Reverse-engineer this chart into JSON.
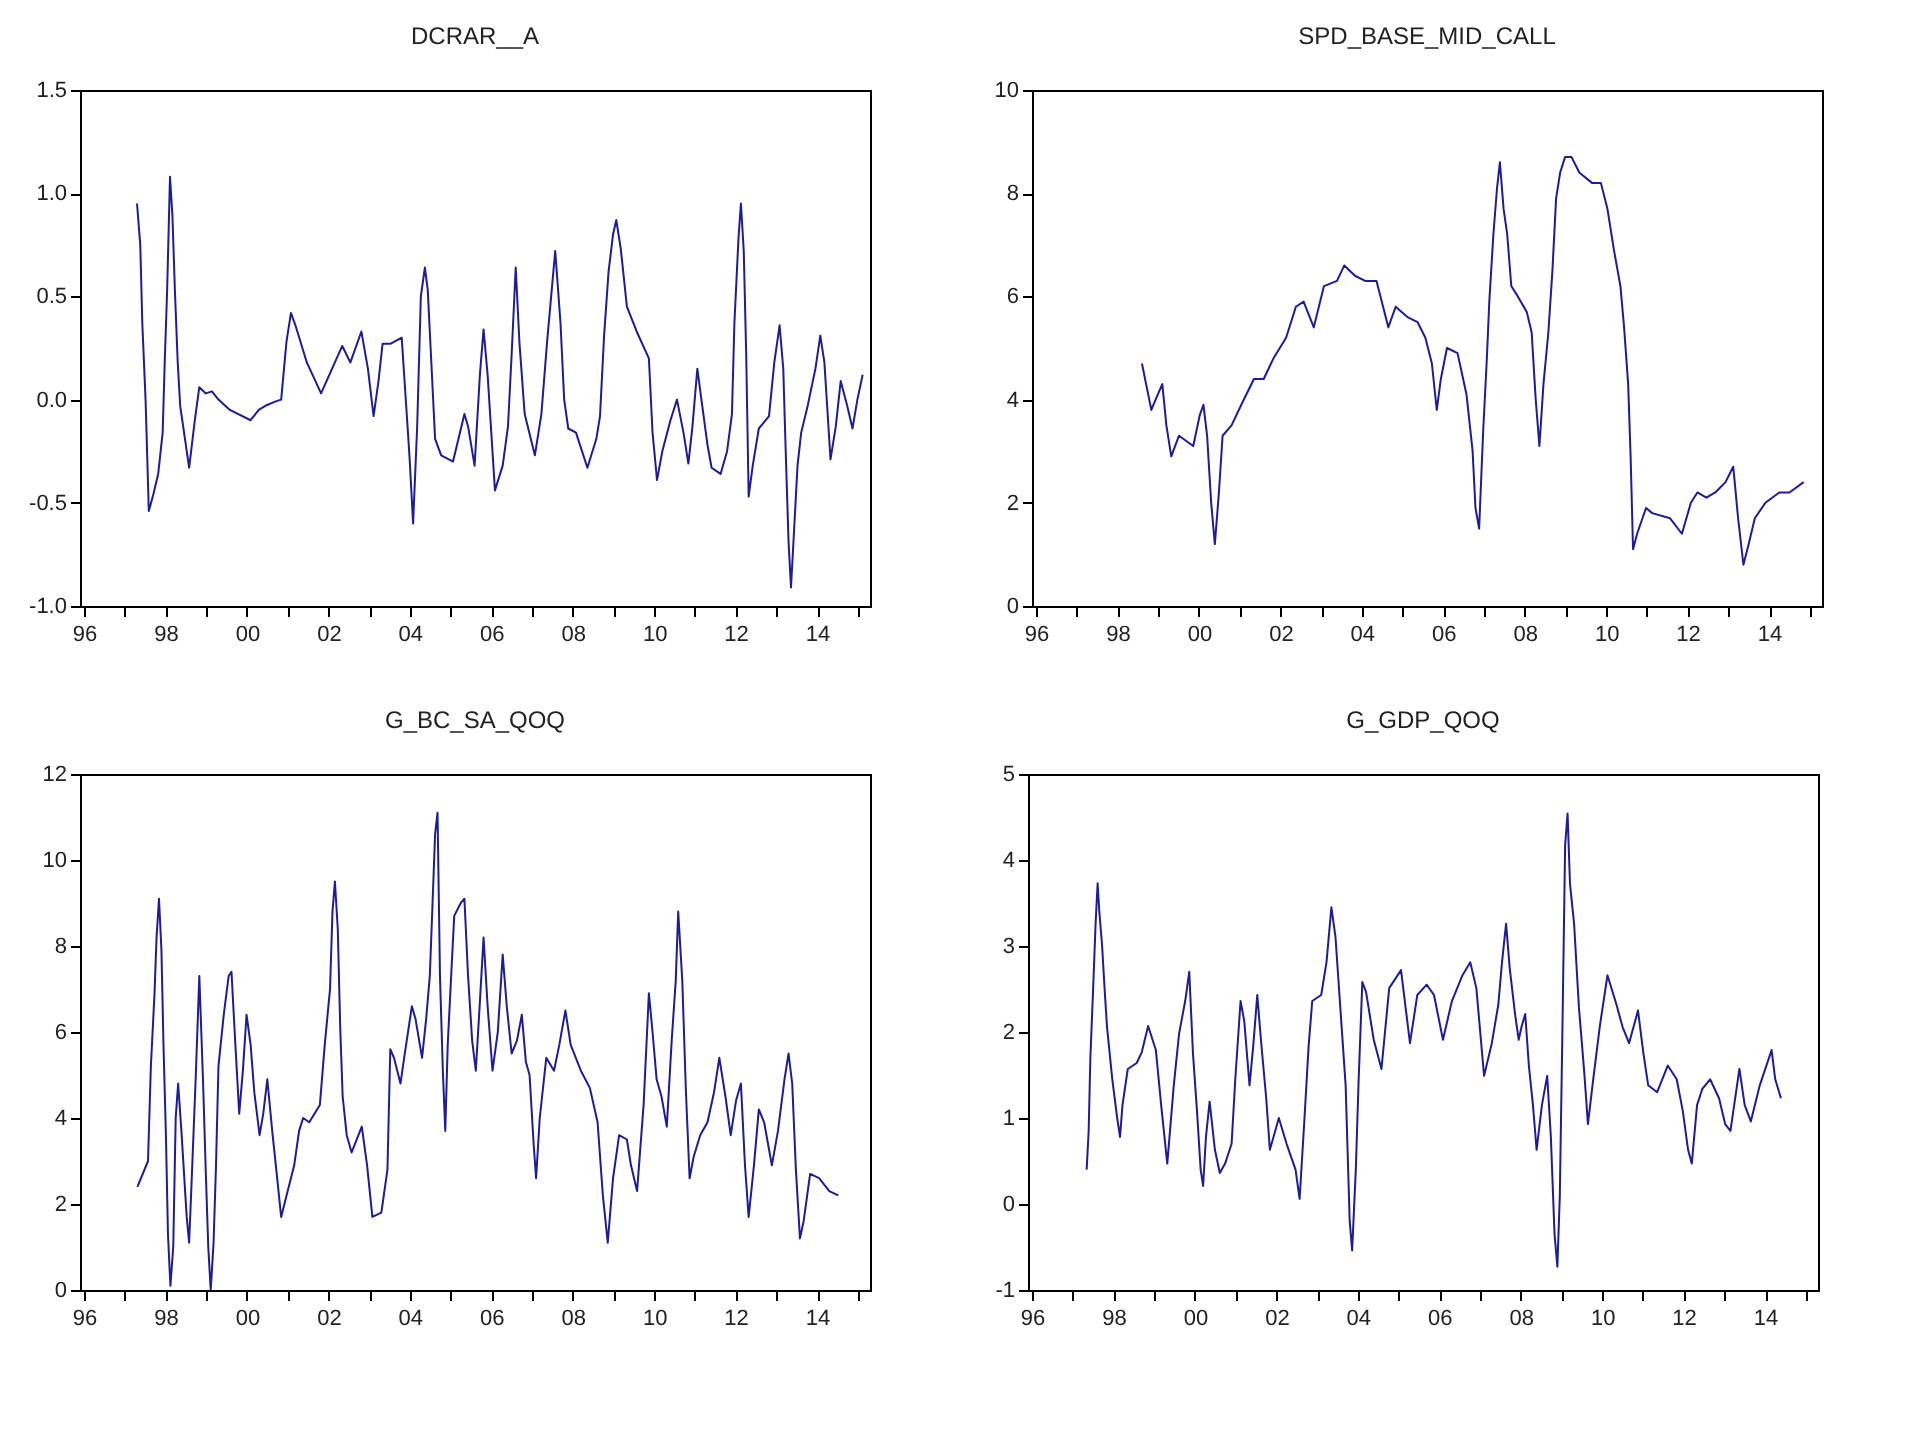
{
  "chart_data": [
    {
      "type": "line",
      "title": "DCRAR__A",
      "xlim": [
        1995.9,
        2015.3
      ],
      "ylim": [
        -1,
        1.5
      ],
      "xticks": [
        {
          "value": 1996,
          "label": "96"
        },
        {
          "value": 1997,
          "label": null
        },
        {
          "value": 1998,
          "label": "98"
        },
        {
          "value": 1999,
          "label": null
        },
        {
          "value": 2000,
          "label": "00"
        },
        {
          "value": 2001,
          "label": null
        },
        {
          "value": 2002,
          "label": "02"
        },
        {
          "value": 2003,
          "label": null
        },
        {
          "value": 2004,
          "label": "04"
        },
        {
          "value": 2005,
          "label": null
        },
        {
          "value": 2006,
          "label": "06"
        },
        {
          "value": 2007,
          "label": null
        },
        {
          "value": 2008,
          "label": "08"
        },
        {
          "value": 2009,
          "label": null
        },
        {
          "value": 2010,
          "label": "10"
        },
        {
          "value": 2011,
          "label": null
        },
        {
          "value": 2012,
          "label": "12"
        },
        {
          "value": 2013,
          "label": null
        },
        {
          "value": 2014,
          "label": "14"
        },
        {
          "value": 2015,
          "label": null
        }
      ],
      "yticks": [
        {
          "value": -1,
          "label": "-1.0"
        },
        -0.5,
        {
          "value": 0,
          "label": "0.0"
        },
        0.5,
        {
          "value": 1,
          "label": "1.0"
        },
        1.5
      ],
      "series": [
        {
          "color": "#1c1c9c",
          "x": [
            1997.3,
            1997.38,
            1997.43,
            1997.51,
            1997.59,
            1997.7,
            1997.82,
            1997.93,
            1997.98,
            1998.04,
            1998.11,
            1998.17,
            1998.23,
            1998.3,
            1998.36,
            1998.58,
            1998.72,
            1998.83,
            1998.99,
            1999.14,
            1999.3,
            1999.58,
            2000.09,
            2000.29,
            2000.45,
            2000.69,
            2000.84,
            2000.97,
            2001.08,
            2001.19,
            2001.47,
            2001.82,
            2002.34,
            2002.54,
            2002.81,
            2002.97,
            2003.11,
            2003.23,
            2003.33,
            2003.52,
            2003.8,
            2003.91,
            2003.99,
            2004.08,
            2004.18,
            2004.27,
            2004.37,
            2004.44,
            2004.51,
            2004.62,
            2004.77,
            2005.06,
            2005.34,
            2005.43,
            2005.59,
            2005.72,
            2005.81,
            2005.91,
            2006.0,
            2006.09,
            2006.28,
            2006.41,
            2006.5,
            2006.6,
            2006.69,
            2006.82,
            2007.07,
            2007.23,
            2007.37,
            2007.57,
            2007.7,
            2007.79,
            2007.89,
            2008.08,
            2008.36,
            2008.58,
            2008.67,
            2008.77,
            2008.88,
            2008.99,
            2009.07,
            2009.18,
            2009.33,
            2009.57,
            2009.87,
            2009.96,
            2010.07,
            2010.2,
            2010.4,
            2010.56,
            2010.72,
            2010.84,
            2010.94,
            2011.06,
            2011.16,
            2011.31,
            2011.41,
            2011.63,
            2011.79,
            2011.91,
            2011.97,
            2012.07,
            2012.13,
            2012.2,
            2012.26,
            2012.32,
            2012.42,
            2012.57,
            2012.82,
            2012.95,
            2013.08,
            2013.17,
            2013.23,
            2013.3,
            2013.36,
            2013.42,
            2013.52,
            2013.61,
            2013.77,
            2013.96,
            2014.08,
            2014.18,
            2014.27,
            2014.33,
            2014.46,
            2014.58,
            2014.74,
            2014.87,
            2014.99,
            2015.12
          ],
          "values": [
            0.95,
            0.75,
            0.37,
            0.0,
            -0.54,
            -0.46,
            -0.36,
            -0.16,
            0.18,
            0.53,
            1.08,
            0.89,
            0.53,
            0.18,
            -0.03,
            -0.33,
            -0.1,
            0.06,
            0.03,
            0.04,
            0.0,
            -0.05,
            -0.1,
            -0.05,
            -0.03,
            -0.01,
            0.0,
            0.28,
            0.42,
            0.36,
            0.18,
            0.03,
            0.26,
            0.18,
            0.33,
            0.15,
            -0.08,
            0.09,
            0.27,
            0.27,
            0.3,
            -0.03,
            -0.27,
            -0.6,
            -0.13,
            0.5,
            0.64,
            0.53,
            0.25,
            -0.19,
            -0.27,
            -0.3,
            -0.07,
            -0.13,
            -0.32,
            0.12,
            0.34,
            0.12,
            -0.16,
            -0.44,
            -0.32,
            -0.13,
            0.22,
            0.64,
            0.28,
            -0.07,
            -0.27,
            -0.07,
            0.28,
            0.72,
            0.37,
            0.0,
            -0.14,
            -0.16,
            -0.33,
            -0.19,
            -0.08,
            0.31,
            0.62,
            0.8,
            0.87,
            0.73,
            0.45,
            0.33,
            0.2,
            -0.16,
            -0.39,
            -0.25,
            -0.1,
            0.0,
            -0.16,
            -0.31,
            -0.13,
            0.15,
            0.0,
            -0.22,
            -0.33,
            -0.36,
            -0.25,
            -0.07,
            0.37,
            0.78,
            0.95,
            0.72,
            0.22,
            -0.47,
            -0.32,
            -0.14,
            -0.08,
            0.18,
            0.36,
            0.15,
            -0.25,
            -0.69,
            -0.91,
            -0.69,
            -0.32,
            -0.16,
            -0.03,
            0.15,
            0.31,
            0.18,
            -0.1,
            -0.29,
            -0.13,
            0.09,
            -0.03,
            -0.14,
            0.0,
            0.12
          ]
        }
      ]
    },
    {
      "type": "line",
      "title": "SPD_BASE_MID_CALL",
      "xlim": [
        1995.9,
        2015.3
      ],
      "ylim": [
        0,
        10
      ],
      "xticks": [
        {
          "value": 1996,
          "label": "96"
        },
        {
          "value": 1997,
          "label": null
        },
        {
          "value": 1998,
          "label": "98"
        },
        {
          "value": 1999,
          "label": null
        },
        {
          "value": 2000,
          "label": "00"
        },
        {
          "value": 2001,
          "label": null
        },
        {
          "value": 2002,
          "label": "02"
        },
        {
          "value": 2003,
          "label": null
        },
        {
          "value": 2004,
          "label": "04"
        },
        {
          "value": 2005,
          "label": null
        },
        {
          "value": 2006,
          "label": "06"
        },
        {
          "value": 2007,
          "label": null
        },
        {
          "value": 2008,
          "label": "08"
        },
        {
          "value": 2009,
          "label": null
        },
        {
          "value": 2010,
          "label": "10"
        },
        {
          "value": 2011,
          "label": null
        },
        {
          "value": 2012,
          "label": "12"
        },
        {
          "value": 2013,
          "label": null
        },
        {
          "value": 2014,
          "label": "14"
        },
        {
          "value": 2015,
          "label": null
        }
      ],
      "yticks": [
        0,
        2,
        4,
        6,
        8,
        10
      ],
      "series": [
        {
          "color": "#1c1c9c",
          "x": [
            1998.6,
            1998.83,
            1998.99,
            1999.1,
            1999.2,
            1999.32,
            1999.51,
            1999.86,
            2000.02,
            2000.11,
            2000.2,
            2000.3,
            2000.39,
            2000.49,
            2000.58,
            2000.8,
            2001.04,
            2001.35,
            2001.59,
            2001.83,
            2002.14,
            2002.38,
            2002.57,
            2002.82,
            2003.07,
            2003.39,
            2003.57,
            2003.83,
            2004.08,
            2004.36,
            2004.65,
            2004.83,
            2005.12,
            2005.37,
            2005.56,
            2005.72,
            2005.84,
            2005.94,
            2006.09,
            2006.35,
            2006.57,
            2006.72,
            2006.79,
            2006.88,
            2006.98,
            2007.07,
            2007.13,
            2007.23,
            2007.32,
            2007.39,
            2007.48,
            2007.57,
            2007.67,
            2007.83,
            2008.05,
            2008.17,
            2008.27,
            2008.36,
            2008.46,
            2008.58,
            2008.68,
            2008.77,
            2008.87,
            2008.99,
            2009.15,
            2009.34,
            2009.65,
            2009.87,
            2010.03,
            2010.19,
            2010.35,
            2010.44,
            2010.54,
            2010.6,
            2010.66,
            2010.76,
            2010.98,
            2011.13,
            2011.57,
            2011.86,
            2012.08,
            2012.24,
            2012.46,
            2012.68,
            2012.93,
            2013.12,
            2013.24,
            2013.37,
            2013.5,
            2013.65,
            2013.91,
            2014.25,
            2014.5,
            2014.85
          ],
          "values": [
            4.7,
            3.8,
            4.1,
            4.3,
            3.5,
            2.9,
            3.3,
            3.1,
            3.7,
            3.9,
            3.3,
            2.0,
            1.2,
            2.2,
            3.3,
            3.5,
            3.9,
            4.4,
            4.4,
            4.8,
            5.2,
            5.8,
            5.9,
            5.4,
            6.2,
            6.3,
            6.6,
            6.4,
            6.3,
            6.3,
            5.4,
            5.8,
            5.6,
            5.5,
            5.2,
            4.7,
            3.8,
            4.4,
            5.0,
            4.9,
            4.1,
            3.0,
            1.9,
            1.5,
            3.4,
            4.8,
            5.9,
            7.2,
            8.1,
            8.6,
            7.7,
            7.2,
            6.2,
            6.0,
            5.7,
            5.3,
            4.0,
            3.1,
            4.3,
            5.3,
            6.5,
            7.9,
            8.4,
            8.7,
            8.7,
            8.4,
            8.2,
            8.2,
            7.7,
            6.9,
            6.2,
            5.4,
            4.3,
            2.9,
            1.1,
            1.4,
            1.9,
            1.8,
            1.7,
            1.4,
            2.0,
            2.2,
            2.1,
            2.2,
            2.4,
            2.7,
            1.7,
            0.8,
            1.2,
            1.7,
            2.0,
            2.2,
            2.2,
            2.4
          ]
        }
      ]
    },
    {
      "type": "line",
      "title": "G_BC_SA_QOQ",
      "xlim": [
        1995.9,
        2015.3
      ],
      "ylim": [
        0,
        12
      ],
      "xticks": [
        {
          "value": 1996,
          "label": "96"
        },
        {
          "value": 1997,
          "label": null
        },
        {
          "value": 1998,
          "label": "98"
        },
        {
          "value": 1999,
          "label": null
        },
        {
          "value": 2000,
          "label": "00"
        },
        {
          "value": 2001,
          "label": null
        },
        {
          "value": 2002,
          "label": "02"
        },
        {
          "value": 2003,
          "label": null
        },
        {
          "value": 2004,
          "label": "04"
        },
        {
          "value": 2005,
          "label": null
        },
        {
          "value": 2006,
          "label": "06"
        },
        {
          "value": 2007,
          "label": null
        },
        {
          "value": 2008,
          "label": "08"
        },
        {
          "value": 2009,
          "label": null
        },
        {
          "value": 2010,
          "label": "10"
        },
        {
          "value": 2011,
          "label": null
        },
        {
          "value": 2012,
          "label": "12"
        },
        {
          "value": 2013,
          "label": null
        },
        {
          "value": 2014,
          "label": "14"
        },
        {
          "value": 2015,
          "label": null
        }
      ],
      "yticks": [
        0,
        2,
        4,
        6,
        8,
        10,
        12
      ],
      "series": [
        {
          "color": "#1c1c9c",
          "x": [
            1997.31,
            1997.57,
            1997.64,
            1997.73,
            1997.78,
            1997.84,
            1997.9,
            1997.95,
            1998.01,
            1998.06,
            1998.12,
            1998.19,
            1998.25,
            1998.31,
            1998.39,
            1998.52,
            1998.58,
            1998.64,
            1998.74,
            1998.83,
            1998.92,
            1998.99,
            1999.05,
            1999.11,
            1999.18,
            1999.24,
            1999.3,
            1999.43,
            1999.55,
            1999.62,
            1999.71,
            1999.81,
            1999.9,
            1999.99,
            2000.09,
            2000.18,
            2000.31,
            2000.4,
            2000.5,
            2000.62,
            2000.72,
            2000.84,
            2001.0,
            2001.16,
            2001.28,
            2001.38,
            2001.53,
            2001.79,
            2001.91,
            2002.04,
            2002.1,
            2002.16,
            2002.23,
            2002.29,
            2002.35,
            2002.45,
            2002.57,
            2002.82,
            2002.95,
            2003.08,
            2003.3,
            2003.45,
            2003.52,
            2003.61,
            2003.77,
            2003.86,
            2004.05,
            2004.14,
            2004.3,
            2004.4,
            2004.49,
            2004.55,
            2004.62,
            2004.68,
            2004.74,
            2004.81,
            2004.87,
            2004.93,
            2005.03,
            2005.09,
            2005.25,
            2005.34,
            2005.43,
            2005.53,
            2005.62,
            2005.72,
            2005.81,
            2005.91,
            2006.03,
            2006.16,
            2006.28,
            2006.38,
            2006.5,
            2006.63,
            2006.75,
            2006.85,
            2006.94,
            2007.04,
            2007.1,
            2007.19,
            2007.35,
            2007.54,
            2007.67,
            2007.82,
            2007.95,
            2008.2,
            2008.42,
            2008.61,
            2008.74,
            2008.86,
            2008.99,
            2009.14,
            2009.33,
            2009.43,
            2009.58,
            2009.74,
            2009.87,
            2009.96,
            2010.06,
            2010.18,
            2010.31,
            2010.43,
            2010.53,
            2010.59,
            2010.69,
            2010.78,
            2010.87,
            2010.97,
            2011.13,
            2011.31,
            2011.47,
            2011.6,
            2011.75,
            2011.88,
            2012.01,
            2012.13,
            2012.23,
            2012.32,
            2012.45,
            2012.57,
            2012.7,
            2012.89,
            2013.04,
            2013.2,
            2013.3,
            2013.39,
            2013.48,
            2013.58,
            2013.67,
            2013.83,
            2014.05,
            2014.3,
            2014.52
          ],
          "values": [
            2.4,
            3.0,
            5.2,
            6.9,
            8.2,
            9.1,
            7.9,
            5.7,
            3.6,
            1.3,
            0.1,
            1.0,
            4.0,
            4.8,
            3.7,
            1.7,
            1.1,
            2.5,
            4.9,
            7.3,
            4.9,
            2.7,
            1.0,
            0.0,
            1.1,
            2.9,
            5.2,
            6.4,
            7.3,
            7.4,
            5.8,
            4.1,
            5.1,
            6.4,
            5.7,
            4.6,
            3.6,
            4.1,
            4.9,
            3.7,
            2.8,
            1.7,
            2.3,
            2.9,
            3.7,
            4.0,
            3.9,
            4.3,
            5.7,
            7.0,
            8.8,
            9.5,
            8.4,
            6.1,
            4.5,
            3.6,
            3.2,
            3.8,
            2.9,
            1.7,
            1.8,
            2.8,
            5.6,
            5.4,
            4.8,
            5.4,
            6.6,
            6.3,
            5.4,
            6.3,
            7.3,
            8.8,
            10.6,
            11.1,
            7.3,
            5.1,
            3.7,
            5.7,
            7.6,
            8.7,
            9.0,
            9.1,
            7.3,
            5.8,
            5.1,
            6.7,
            8.2,
            6.6,
            5.1,
            6.0,
            7.8,
            6.6,
            5.5,
            5.8,
            6.4,
            5.3,
            5.0,
            3.4,
            2.6,
            4.0,
            5.4,
            5.1,
            5.7,
            6.5,
            5.7,
            5.1,
            4.7,
            3.9,
            2.2,
            1.1,
            2.6,
            3.6,
            3.5,
            2.9,
            2.3,
            4.3,
            6.9,
            6.0,
            4.9,
            4.5,
            3.8,
            5.8,
            7.2,
            8.8,
            7.2,
            4.6,
            2.6,
            3.1,
            3.6,
            3.9,
            4.6,
            5.4,
            4.5,
            3.6,
            4.4,
            4.8,
            2.9,
            1.7,
            2.9,
            4.2,
            3.9,
            2.9,
            3.7,
            4.9,
            5.5,
            4.8,
            2.8,
            1.2,
            1.6,
            2.7,
            2.6,
            2.3,
            2.2
          ]
        }
      ]
    },
    {
      "type": "line",
      "title": "G_GDP_QOQ",
      "xlim": [
        1995.9,
        2015.3
      ],
      "ylim": [
        -1,
        5
      ],
      "xticks": [
        {
          "value": 1996,
          "label": "96"
        },
        {
          "value": 1997,
          "label": null
        },
        {
          "value": 1998,
          "label": "98"
        },
        {
          "value": 1999,
          "label": null
        },
        {
          "value": 2000,
          "label": "00"
        },
        {
          "value": 2001,
          "label": null
        },
        {
          "value": 2002,
          "label": "02"
        },
        {
          "value": 2003,
          "label": null
        },
        {
          "value": 2004,
          "label": "04"
        },
        {
          "value": 2005,
          "label": null
        },
        {
          "value": 2006,
          "label": "06"
        },
        {
          "value": 2007,
          "label": null
        },
        {
          "value": 2008,
          "label": "08"
        },
        {
          "value": 2009,
          "label": null
        },
        {
          "value": 2010,
          "label": "10"
        },
        {
          "value": 2011,
          "label": null
        },
        {
          "value": 2012,
          "label": "12"
        },
        {
          "value": 2013,
          "label": null
        },
        {
          "value": 2014,
          "label": "14"
        },
        {
          "value": 2015,
          "label": null
        }
      ],
      "yticks": [
        -1,
        0,
        1,
        2,
        3,
        4,
        5
      ],
      "series": [
        {
          "color": "#1c1c9c",
          "x": [
            1997.34,
            1997.39,
            1997.43,
            1997.5,
            1997.56,
            1997.61,
            1997.65,
            1997.72,
            1997.78,
            1997.84,
            1997.97,
            1998.09,
            1998.16,
            1998.22,
            1998.35,
            1998.57,
            1998.69,
            1998.85,
            1999.04,
            1999.17,
            1999.32,
            1999.48,
            1999.61,
            1999.76,
            1999.86,
            1999.95,
            2000.05,
            2000.14,
            2000.2,
            2000.27,
            2000.36,
            2000.49,
            2000.61,
            2000.74,
            2000.9,
            2000.99,
            2001.12,
            2001.21,
            2001.34,
            2001.43,
            2001.53,
            2001.62,
            2001.75,
            2001.84,
            2002.06,
            2002.25,
            2002.47,
            2002.57,
            2002.69,
            2002.79,
            2002.88,
            2003.1,
            2003.23,
            2003.35,
            2003.45,
            2003.57,
            2003.7,
            2003.8,
            2003.86,
            2003.95,
            2004.02,
            2004.11,
            2004.2,
            2004.39,
            2004.58,
            2004.77,
            2005.06,
            2005.28,
            2005.46,
            2005.69,
            2005.87,
            2006.09,
            2006.31,
            2006.57,
            2006.76,
            2006.91,
            2007.1,
            2007.29,
            2007.45,
            2007.54,
            2007.64,
            2007.73,
            2007.86,
            2007.95,
            2008.02,
            2008.11,
            2008.2,
            2008.3,
            2008.39,
            2008.52,
            2008.65,
            2008.74,
            2008.83,
            2008.9,
            2008.96,
            2009.02,
            2009.09,
            2009.15,
            2009.21,
            2009.31,
            2009.43,
            2009.56,
            2009.65,
            2009.78,
            2009.94,
            2010.13,
            2010.35,
            2010.5,
            2010.66,
            2010.88,
            2011.01,
            2011.13,
            2011.35,
            2011.61,
            2011.83,
            2011.98,
            2012.11,
            2012.2,
            2012.33,
            2012.46,
            2012.65,
            2012.87,
            2013.02,
            2013.15,
            2013.37,
            2013.5,
            2013.65,
            2013.87,
            2014.16,
            2014.25,
            2014.39
          ],
          "values": [
            0.4,
            0.85,
            1.68,
            2.51,
            3.26,
            3.73,
            3.41,
            3.0,
            2.51,
            2.06,
            1.45,
            1.0,
            0.78,
            1.15,
            1.57,
            1.64,
            1.76,
            2.07,
            1.79,
            1.15,
            0.47,
            1.38,
            1.98,
            2.36,
            2.7,
            1.76,
            1.08,
            0.4,
            0.21,
            0.78,
            1.19,
            0.63,
            0.36,
            0.47,
            0.7,
            1.45,
            2.36,
            2.13,
            1.38,
            1.83,
            2.43,
            1.91,
            1.23,
            0.63,
            1.0,
            0.7,
            0.4,
            0.06,
            1.0,
            1.83,
            2.36,
            2.43,
            2.81,
            3.45,
            3.11,
            2.28,
            1.38,
            -0.2,
            -0.54,
            0.4,
            1.45,
            2.58,
            2.47,
            1.91,
            1.57,
            2.51,
            2.72,
            1.87,
            2.43,
            2.55,
            2.43,
            1.91,
            2.36,
            2.66,
            2.81,
            2.51,
            1.49,
            1.87,
            2.32,
            2.81,
            3.26,
            2.74,
            2.21,
            1.91,
            2.06,
            2.21,
            1.61,
            1.15,
            0.63,
            1.15,
            1.49,
            0.78,
            -0.35,
            -0.73,
            0.1,
            1.91,
            4.17,
            4.54,
            3.72,
            3.26,
            2.28,
            1.53,
            0.93,
            1.45,
            2.06,
            2.66,
            2.32,
            2.06,
            1.87,
            2.25,
            1.76,
            1.38,
            1.3,
            1.61,
            1.45,
            1.08,
            0.63,
            0.47,
            1.15,
            1.34,
            1.45,
            1.23,
            0.93,
            0.85,
            1.57,
            1.15,
            0.96,
            1.38,
            1.79,
            1.45,
            1.23
          ]
        }
      ]
    }
  ]
}
